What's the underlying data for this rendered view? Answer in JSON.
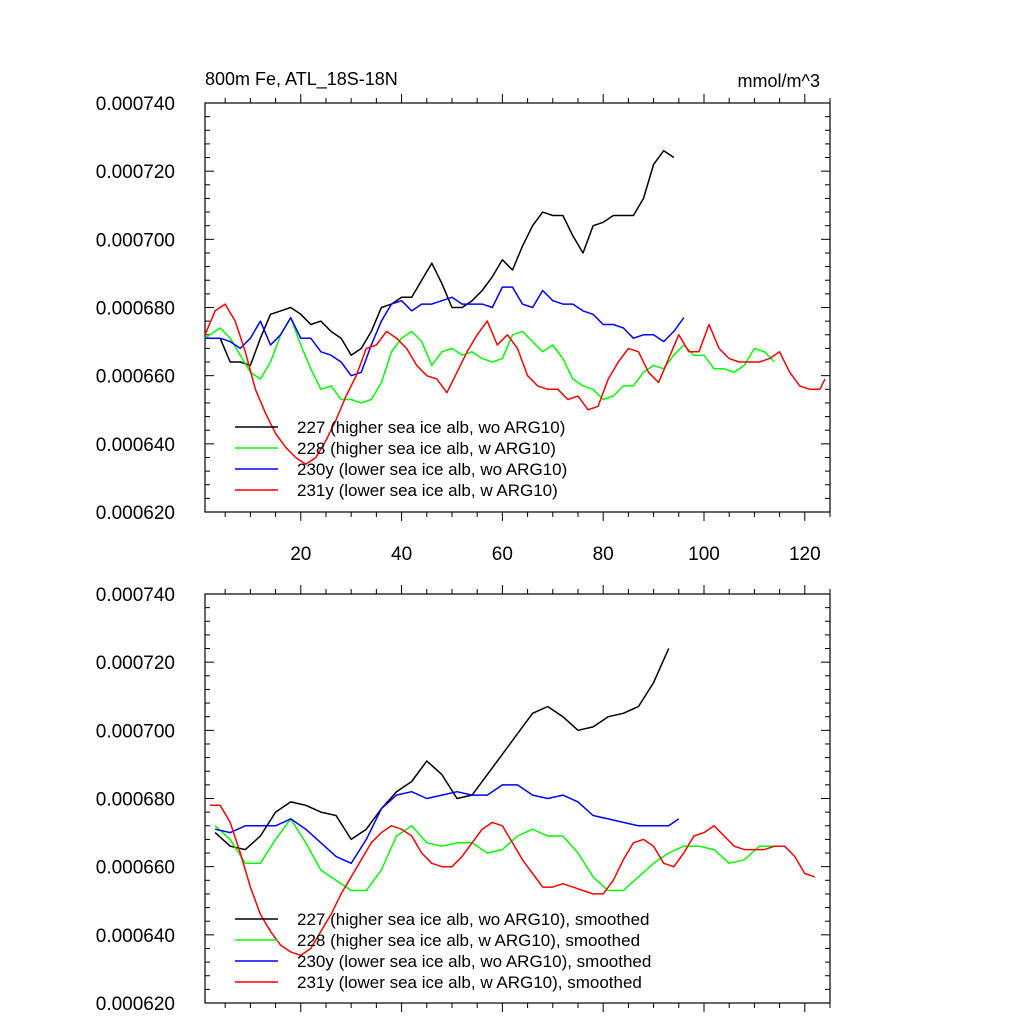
{
  "panels": [
    {
      "title_left": "800m Fe, ATL_18S-18N",
      "title_right": "mmol/m^3",
      "legend": [
        "227 (higher sea ice alb, wo ARG10)",
        "228 (higher sea ice alb, w ARG10)",
        "230y (lower sea ice alb, wo ARG10)",
        "231y (lower sea ice alb, w ARG10)"
      ]
    },
    {
      "title_left": "",
      "title_right": "",
      "legend": [
        "227 (higher sea ice alb, wo ARG10), smoothed",
        "228 (higher sea ice alb, w ARG10), smoothed",
        "230y (lower sea ice alb, wo ARG10), smoothed",
        "231y (lower sea ice alb, w ARG10), smoothed"
      ]
    }
  ],
  "colors": {
    "s227": "#000000",
    "s228": "#00ff00",
    "s230y": "#0000ff",
    "s231y": "#ff0000"
  },
  "chart_data": [
    {
      "type": "line",
      "title": "800m Fe, ATL_18S-18N",
      "units": "mmol/m^3",
      "xlim": [
        1,
        125
      ],
      "ylim": [
        0.00062,
        0.00074
      ],
      "xticks": [
        20,
        40,
        60,
        80,
        100,
        120
      ],
      "xtick_labels": [
        "20",
        "40",
        "60",
        "80",
        "100",
        "120"
      ],
      "yticks": [
        0.00062,
        0.00064,
        0.00066,
        0.00068,
        0.0007,
        0.00072,
        0.00074
      ],
      "ytick_labels": [
        "0.000620",
        "0.000640",
        "0.000660",
        "0.000680",
        "0.000700",
        "0.000720",
        "0.000740"
      ],
      "legend_position": "bottom-left",
      "series": [
        {
          "name": "227 (higher sea ice alb, wo ARG10)",
          "color": "#000000",
          "x": [
            1,
            4,
            6,
            8,
            10,
            12,
            14,
            16,
            18,
            20,
            22,
            24,
            26,
            28,
            30,
            32,
            34,
            36,
            38,
            40,
            42,
            44,
            46,
            48,
            50,
            52,
            54,
            56,
            58,
            60,
            62,
            64,
            66,
            68,
            70,
            72,
            74,
            76,
            78,
            80,
            82,
            84,
            86,
            88,
            90,
            92,
            94
          ],
          "y": [
            0.000671,
            0.000671,
            0.000664,
            0.000664,
            0.000663,
            0.000671,
            0.000678,
            0.000679,
            0.00068,
            0.000678,
            0.000675,
            0.000676,
            0.000673,
            0.000671,
            0.000666,
            0.000668,
            0.000673,
            0.00068,
            0.000681,
            0.000683,
            0.000683,
            0.000688,
            0.000693,
            0.000687,
            0.00068,
            0.00068,
            0.000682,
            0.000685,
            0.000689,
            0.000694,
            0.000691,
            0.000698,
            0.000704,
            0.000708,
            0.000707,
            0.000707,
            0.000701,
            0.000696,
            0.000704,
            0.000705,
            0.000707,
            0.000707,
            0.000707,
            0.000712,
            0.000722,
            0.000726,
            0.000724
          ]
        },
        {
          "name": "228 (higher sea ice alb, w ARG10)",
          "color": "#00ff00",
          "x": [
            1,
            4,
            6,
            8,
            10,
            12,
            14,
            16,
            18,
            20,
            22,
            24,
            26,
            28,
            30,
            32,
            34,
            36,
            38,
            40,
            42,
            44,
            46,
            48,
            50,
            52,
            54,
            56,
            58,
            60,
            62,
            64,
            66,
            68,
            70,
            72,
            74,
            76,
            78,
            80,
            82,
            84,
            86,
            88,
            90,
            92,
            94,
            96,
            98,
            100,
            102,
            104,
            106,
            108,
            110,
            112,
            114
          ],
          "y": [
            0.000671,
            0.000674,
            0.000671,
            0.000666,
            0.000661,
            0.000659,
            0.000664,
            0.000672,
            0.000677,
            0.000669,
            0.000662,
            0.000656,
            0.000657,
            0.000653,
            0.000653,
            0.000652,
            0.000653,
            0.000658,
            0.000667,
            0.000671,
            0.000673,
            0.00067,
            0.000663,
            0.000667,
            0.000668,
            0.000666,
            0.000667,
            0.000665,
            0.000664,
            0.000665,
            0.000672,
            0.000673,
            0.00067,
            0.000667,
            0.000669,
            0.000665,
            0.000659,
            0.000657,
            0.000656,
            0.000653,
            0.000654,
            0.000657,
            0.000657,
            0.000661,
            0.000663,
            0.000662,
            0.000666,
            0.000669,
            0.000666,
            0.000666,
            0.000662,
            0.000662,
            0.000661,
            0.000663,
            0.000668,
            0.000667,
            0.000664
          ]
        },
        {
          "name": "230y (lower sea ice alb, wo ARG10)",
          "color": "#0000ff",
          "x": [
            1,
            4,
            6,
            8,
            10,
            12,
            14,
            16,
            18,
            20,
            22,
            24,
            26,
            28,
            30,
            32,
            34,
            36,
            38,
            40,
            42,
            44,
            46,
            48,
            50,
            52,
            54,
            56,
            58,
            60,
            62,
            64,
            66,
            68,
            70,
            72,
            74,
            76,
            78,
            80,
            82,
            84,
            86,
            88,
            90,
            92,
            94,
            96
          ],
          "y": [
            0.000671,
            0.000671,
            0.00067,
            0.000668,
            0.000671,
            0.000676,
            0.000669,
            0.000672,
            0.000677,
            0.000671,
            0.000671,
            0.000667,
            0.000666,
            0.000664,
            0.00066,
            0.000661,
            0.000669,
            0.000676,
            0.000681,
            0.000682,
            0.000679,
            0.000681,
            0.000681,
            0.000682,
            0.000683,
            0.000681,
            0.000681,
            0.000681,
            0.00068,
            0.000686,
            0.000686,
            0.000681,
            0.00068,
            0.000685,
            0.000682,
            0.000681,
            0.000681,
            0.000679,
            0.000678,
            0.000675,
            0.000675,
            0.000674,
            0.000671,
            0.000672,
            0.000672,
            0.00067,
            0.000673,
            0.000677
          ]
        },
        {
          "name": "231y (lower sea ice alb, w ARG10)",
          "color": "#ff0000",
          "x": [
            1,
            3,
            5,
            7,
            9,
            11,
            13,
            15,
            17,
            19,
            21,
            23,
            25,
            27,
            29,
            31,
            33,
            35,
            37,
            39,
            41,
            43,
            45,
            47,
            49,
            51,
            53,
            55,
            57,
            59,
            61,
            63,
            65,
            67,
            69,
            71,
            73,
            75,
            77,
            79,
            81,
            83,
            85,
            87,
            89,
            91,
            93,
            95,
            97,
            99,
            101,
            103,
            105,
            107,
            109,
            111,
            113,
            115,
            117,
            119,
            121,
            123,
            124
          ],
          "y": [
            0.000672,
            0.000679,
            0.000681,
            0.000676,
            0.000667,
            0.000656,
            0.000649,
            0.000643,
            0.000639,
            0.000636,
            0.000634,
            0.000636,
            0.000641,
            0.000647,
            0.000654,
            0.00066,
            0.000668,
            0.000669,
            0.000673,
            0.000671,
            0.000668,
            0.000663,
            0.00066,
            0.000659,
            0.000655,
            0.000661,
            0.000667,
            0.000672,
            0.000676,
            0.000669,
            0.000672,
            0.000668,
            0.00066,
            0.000657,
            0.000656,
            0.000656,
            0.000653,
            0.000654,
            0.00065,
            0.000651,
            0.000659,
            0.000664,
            0.000668,
            0.000667,
            0.000661,
            0.000658,
            0.000665,
            0.000672,
            0.000667,
            0.000667,
            0.000675,
            0.000668,
            0.000665,
            0.000664,
            0.000664,
            0.000664,
            0.000665,
            0.000667,
            0.000661,
            0.000657,
            0.000656,
            0.000656,
            0.000659
          ]
        }
      ]
    },
    {
      "type": "line",
      "title": "",
      "xlim": [
        1,
        125
      ],
      "ylim": [
        0.00062,
        0.00074
      ],
      "xticks": [
        20,
        40,
        60,
        80,
        100,
        120
      ],
      "xtick_labels": [],
      "yticks": [
        0.00062,
        0.00064,
        0.00066,
        0.00068,
        0.0007,
        0.00072,
        0.00074
      ],
      "ytick_labels": [
        "0.000620",
        "0.000640",
        "0.000660",
        "0.000680",
        "0.000700",
        "0.000720",
        "0.000740"
      ],
      "legend_position": "bottom-left",
      "series": [
        {
          "name": "227 (higher sea ice alb, wo ARG10), smoothed",
          "color": "#000000",
          "x": [
            3,
            6,
            9,
            12,
            15,
            18,
            21,
            24,
            27,
            30,
            33,
            36,
            39,
            42,
            45,
            48,
            51,
            54,
            57,
            60,
            63,
            66,
            69,
            72,
            75,
            78,
            81,
            84,
            87,
            90,
            93
          ],
          "y": [
            0.00067,
            0.000666,
            0.000665,
            0.000669,
            0.000676,
            0.000679,
            0.000678,
            0.000676,
            0.000675,
            0.000668,
            0.000671,
            0.000677,
            0.000682,
            0.000685,
            0.000691,
            0.000687,
            0.00068,
            0.000681,
            0.000687,
            0.000693,
            0.000699,
            0.000705,
            0.000707,
            0.000704,
            0.0007,
            0.000701,
            0.000704,
            0.000705,
            0.000707,
            0.000714,
            0.000724
          ]
        },
        {
          "name": "228 (higher sea ice alb, w ARG10), smoothed",
          "color": "#00ff00",
          "x": [
            3,
            6,
            9,
            12,
            15,
            18,
            21,
            24,
            27,
            30,
            33,
            36,
            39,
            42,
            45,
            48,
            51,
            54,
            57,
            60,
            63,
            66,
            69,
            72,
            75,
            78,
            81,
            84,
            87,
            90,
            93,
            96,
            99,
            102,
            105,
            108,
            111,
            114
          ],
          "y": [
            0.000672,
            0.000668,
            0.000661,
            0.000661,
            0.000668,
            0.000674,
            0.000667,
            0.000659,
            0.000656,
            0.000653,
            0.000653,
            0.000659,
            0.000669,
            0.000672,
            0.000667,
            0.000666,
            0.000667,
            0.000667,
            0.000664,
            0.000665,
            0.000669,
            0.000671,
            0.000669,
            0.000669,
            0.000664,
            0.000657,
            0.000653,
            0.000653,
            0.000657,
            0.000661,
            0.000664,
            0.000666,
            0.000666,
            0.000665,
            0.000661,
            0.000662,
            0.000666,
            0.000666
          ]
        },
        {
          "name": "230y (lower sea ice alb, wo ARG10), smoothed",
          "color": "#0000ff",
          "x": [
            3,
            6,
            9,
            12,
            15,
            18,
            21,
            24,
            27,
            30,
            33,
            36,
            39,
            42,
            45,
            48,
            51,
            54,
            57,
            60,
            63,
            66,
            69,
            72,
            75,
            78,
            81,
            84,
            87,
            90,
            93,
            95
          ],
          "y": [
            0.000671,
            0.00067,
            0.000672,
            0.000672,
            0.000672,
            0.000674,
            0.000671,
            0.000667,
            0.000663,
            0.000661,
            0.000668,
            0.000677,
            0.000681,
            0.000682,
            0.00068,
            0.000681,
            0.000682,
            0.000681,
            0.000681,
            0.000684,
            0.000684,
            0.000681,
            0.00068,
            0.000681,
            0.000679,
            0.000675,
            0.000674,
            0.000673,
            0.000672,
            0.000672,
            0.000672,
            0.000674
          ]
        },
        {
          "name": "231y (lower sea ice alb, w ARG10), smoothed",
          "color": "#ff0000",
          "x": [
            2,
            4,
            6,
            8,
            10,
            12,
            14,
            16,
            18,
            20,
            22,
            24,
            26,
            28,
            30,
            32,
            34,
            36,
            38,
            40,
            42,
            44,
            46,
            48,
            50,
            52,
            54,
            56,
            58,
            60,
            62,
            64,
            66,
            68,
            70,
            72,
            74,
            76,
            78,
            80,
            82,
            84,
            86,
            88,
            90,
            92,
            94,
            96,
            98,
            100,
            102,
            104,
            106,
            108,
            110,
            112,
            114,
            116,
            118,
            120,
            122
          ],
          "y": [
            0.000678,
            0.000678,
            0.000673,
            0.000664,
            0.000654,
            0.000646,
            0.000641,
            0.000637,
            0.000635,
            0.000634,
            0.000636,
            0.000641,
            0.000646,
            0.000652,
            0.000657,
            0.000662,
            0.000667,
            0.00067,
            0.000672,
            0.000671,
            0.000669,
            0.000664,
            0.000661,
            0.00066,
            0.00066,
            0.000663,
            0.000667,
            0.000671,
            0.000673,
            0.000672,
            0.000667,
            0.000662,
            0.000658,
            0.000654,
            0.000654,
            0.000655,
            0.000654,
            0.000653,
            0.000652,
            0.000652,
            0.000656,
            0.000662,
            0.000667,
            0.000668,
            0.000666,
            0.000661,
            0.00066,
            0.000664,
            0.000669,
            0.00067,
            0.000672,
            0.000669,
            0.000666,
            0.000665,
            0.000665,
            0.000665,
            0.000666,
            0.000666,
            0.000663,
            0.000658,
            0.000657
          ]
        }
      ]
    }
  ]
}
